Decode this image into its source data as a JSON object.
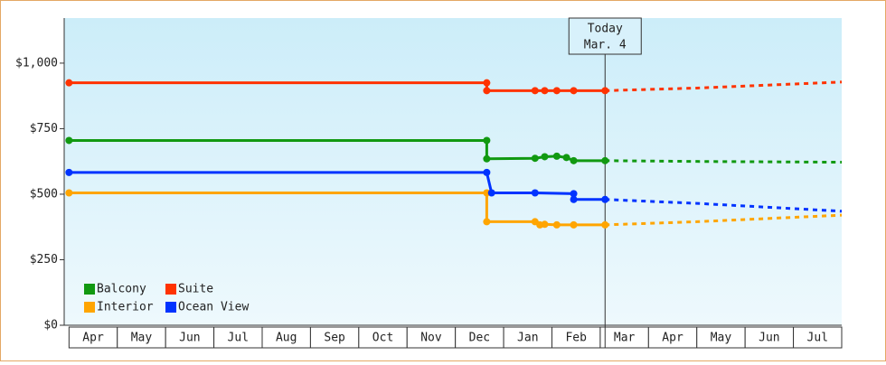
{
  "chart_data": {
    "type": "line",
    "ylim": [
      0,
      1172
    ],
    "yticks": [
      {
        "value": 0,
        "label": "$0"
      },
      {
        "value": 250,
        "label": "$250"
      },
      {
        "value": 500,
        "label": "$500"
      },
      {
        "value": 750,
        "label": "$750"
      },
      {
        "value": 1000,
        "label": "$1,000"
      }
    ],
    "xlim": [
      -0.1,
      16
    ],
    "xticks": [
      {
        "value": 0.5,
        "label": "Apr"
      },
      {
        "value": 1.5,
        "label": "May"
      },
      {
        "value": 2.5,
        "label": "Jun"
      },
      {
        "value": 3.5,
        "label": "Jul"
      },
      {
        "value": 4.5,
        "label": "Aug"
      },
      {
        "value": 5.5,
        "label": "Sep"
      },
      {
        "value": 6.5,
        "label": "Oct"
      },
      {
        "value": 7.5,
        "label": "Nov"
      },
      {
        "value": 8.5,
        "label": "Dec"
      },
      {
        "value": 9.5,
        "label": "Jan"
      },
      {
        "value": 10.5,
        "label": "Feb"
      },
      {
        "value": 11.5,
        "label": "Mar"
      },
      {
        "value": 12.5,
        "label": "Apr"
      },
      {
        "value": 13.5,
        "label": "May"
      },
      {
        "value": 14.5,
        "label": "Jun"
      },
      {
        "value": 15.5,
        "label": "Jul"
      }
    ],
    "annotation": {
      "x": 11.1,
      "lines": [
        "Today",
        "Mar. 4"
      ]
    },
    "series": [
      {
        "name": "Balcony",
        "color": "#119911",
        "x": [
          0,
          8.65,
          8.65,
          9.65,
          9.85,
          10.1,
          10.3,
          10.45,
          11.1
        ],
        "values": [
          705,
          705,
          635,
          637,
          643,
          645,
          640,
          628,
          628
        ],
        "forecast_x": [
          11.1,
          13,
          16
        ],
        "forecast_values": [
          628,
          625,
          622
        ]
      },
      {
        "name": "Suite",
        "color": "#ff3300",
        "x": [
          0,
          8.65,
          8.65,
          9.65,
          9.85,
          10.1,
          10.45,
          11.1
        ],
        "values": [
          925,
          925,
          895,
          895,
          895,
          895,
          895,
          895
        ],
        "forecast_x": [
          11.1,
          13,
          16
        ],
        "forecast_values": [
          895,
          905,
          928
        ]
      },
      {
        "name": "Interior",
        "color": "#ffa500",
        "x": [
          0,
          8.65,
          8.65,
          9.65,
          9.75,
          9.85,
          10.1,
          10.45,
          11.1
        ],
        "values": [
          505,
          505,
          395,
          395,
          383,
          385,
          383,
          383,
          383
        ],
        "forecast_x": [
          11.1,
          13,
          16
        ],
        "forecast_values": [
          383,
          395,
          420
        ]
      },
      {
        "name": "Ocean View",
        "color": "#0033ff",
        "x": [
          0,
          8.65,
          8.75,
          9.65,
          10.45,
          10.45,
          11.1
        ],
        "values": [
          583,
          583,
          505,
          505,
          502,
          480,
          480
        ],
        "forecast_x": [
          11.1,
          13,
          16
        ],
        "forecast_values": [
          480,
          465,
          435
        ]
      }
    ]
  }
}
